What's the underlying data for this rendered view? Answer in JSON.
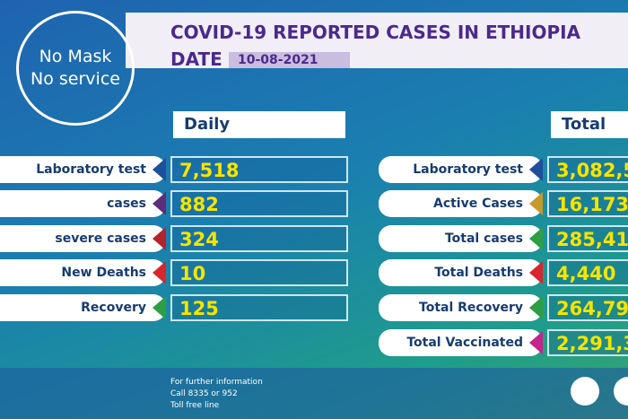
{
  "badge": {
    "lines": [
      "No Mask",
      "No service"
    ]
  },
  "header": {
    "title": "COVID-19 REPORTED CASES IN ETHIOPIA",
    "date_label": "DATE",
    "date": "10-08-2021"
  },
  "daily": {
    "heading": "Daily",
    "rows": [
      {
        "label": "Laboratory test",
        "value": "7,518",
        "color": "#1d4f9c"
      },
      {
        "label": "cases",
        "value": "882",
        "color": "#5b2d7a"
      },
      {
        "label": "severe cases",
        "value": "324",
        "color": "#b3242c"
      },
      {
        "label": "New Deaths",
        "value": "10",
        "color": "#d8262e"
      },
      {
        "label": "Recovery",
        "value": "125",
        "color": "#2e9e44"
      }
    ]
  },
  "total": {
    "heading": "Total",
    "rows": [
      {
        "label": "Laboratory test",
        "value": "3,082,5",
        "color": "#1d4f9c"
      },
      {
        "label": "Active Cases",
        "value": "16,173",
        "color": "#c59a2a"
      },
      {
        "label": "Total cases",
        "value": "285,41",
        "color": "#2e9e44"
      },
      {
        "label": "Total Deaths",
        "value": "4,440",
        "color": "#d8262e"
      },
      {
        "label": "Total Recovery",
        "value": "264,79",
        "color": "#2e9e44"
      },
      {
        "label": "Total Vaccinated",
        "value": "2,291,3",
        "color": "#c2258c"
      }
    ]
  },
  "footer": {
    "lines": [
      "For further information",
      "Call 8335 or 952",
      "Toll free line"
    ]
  }
}
